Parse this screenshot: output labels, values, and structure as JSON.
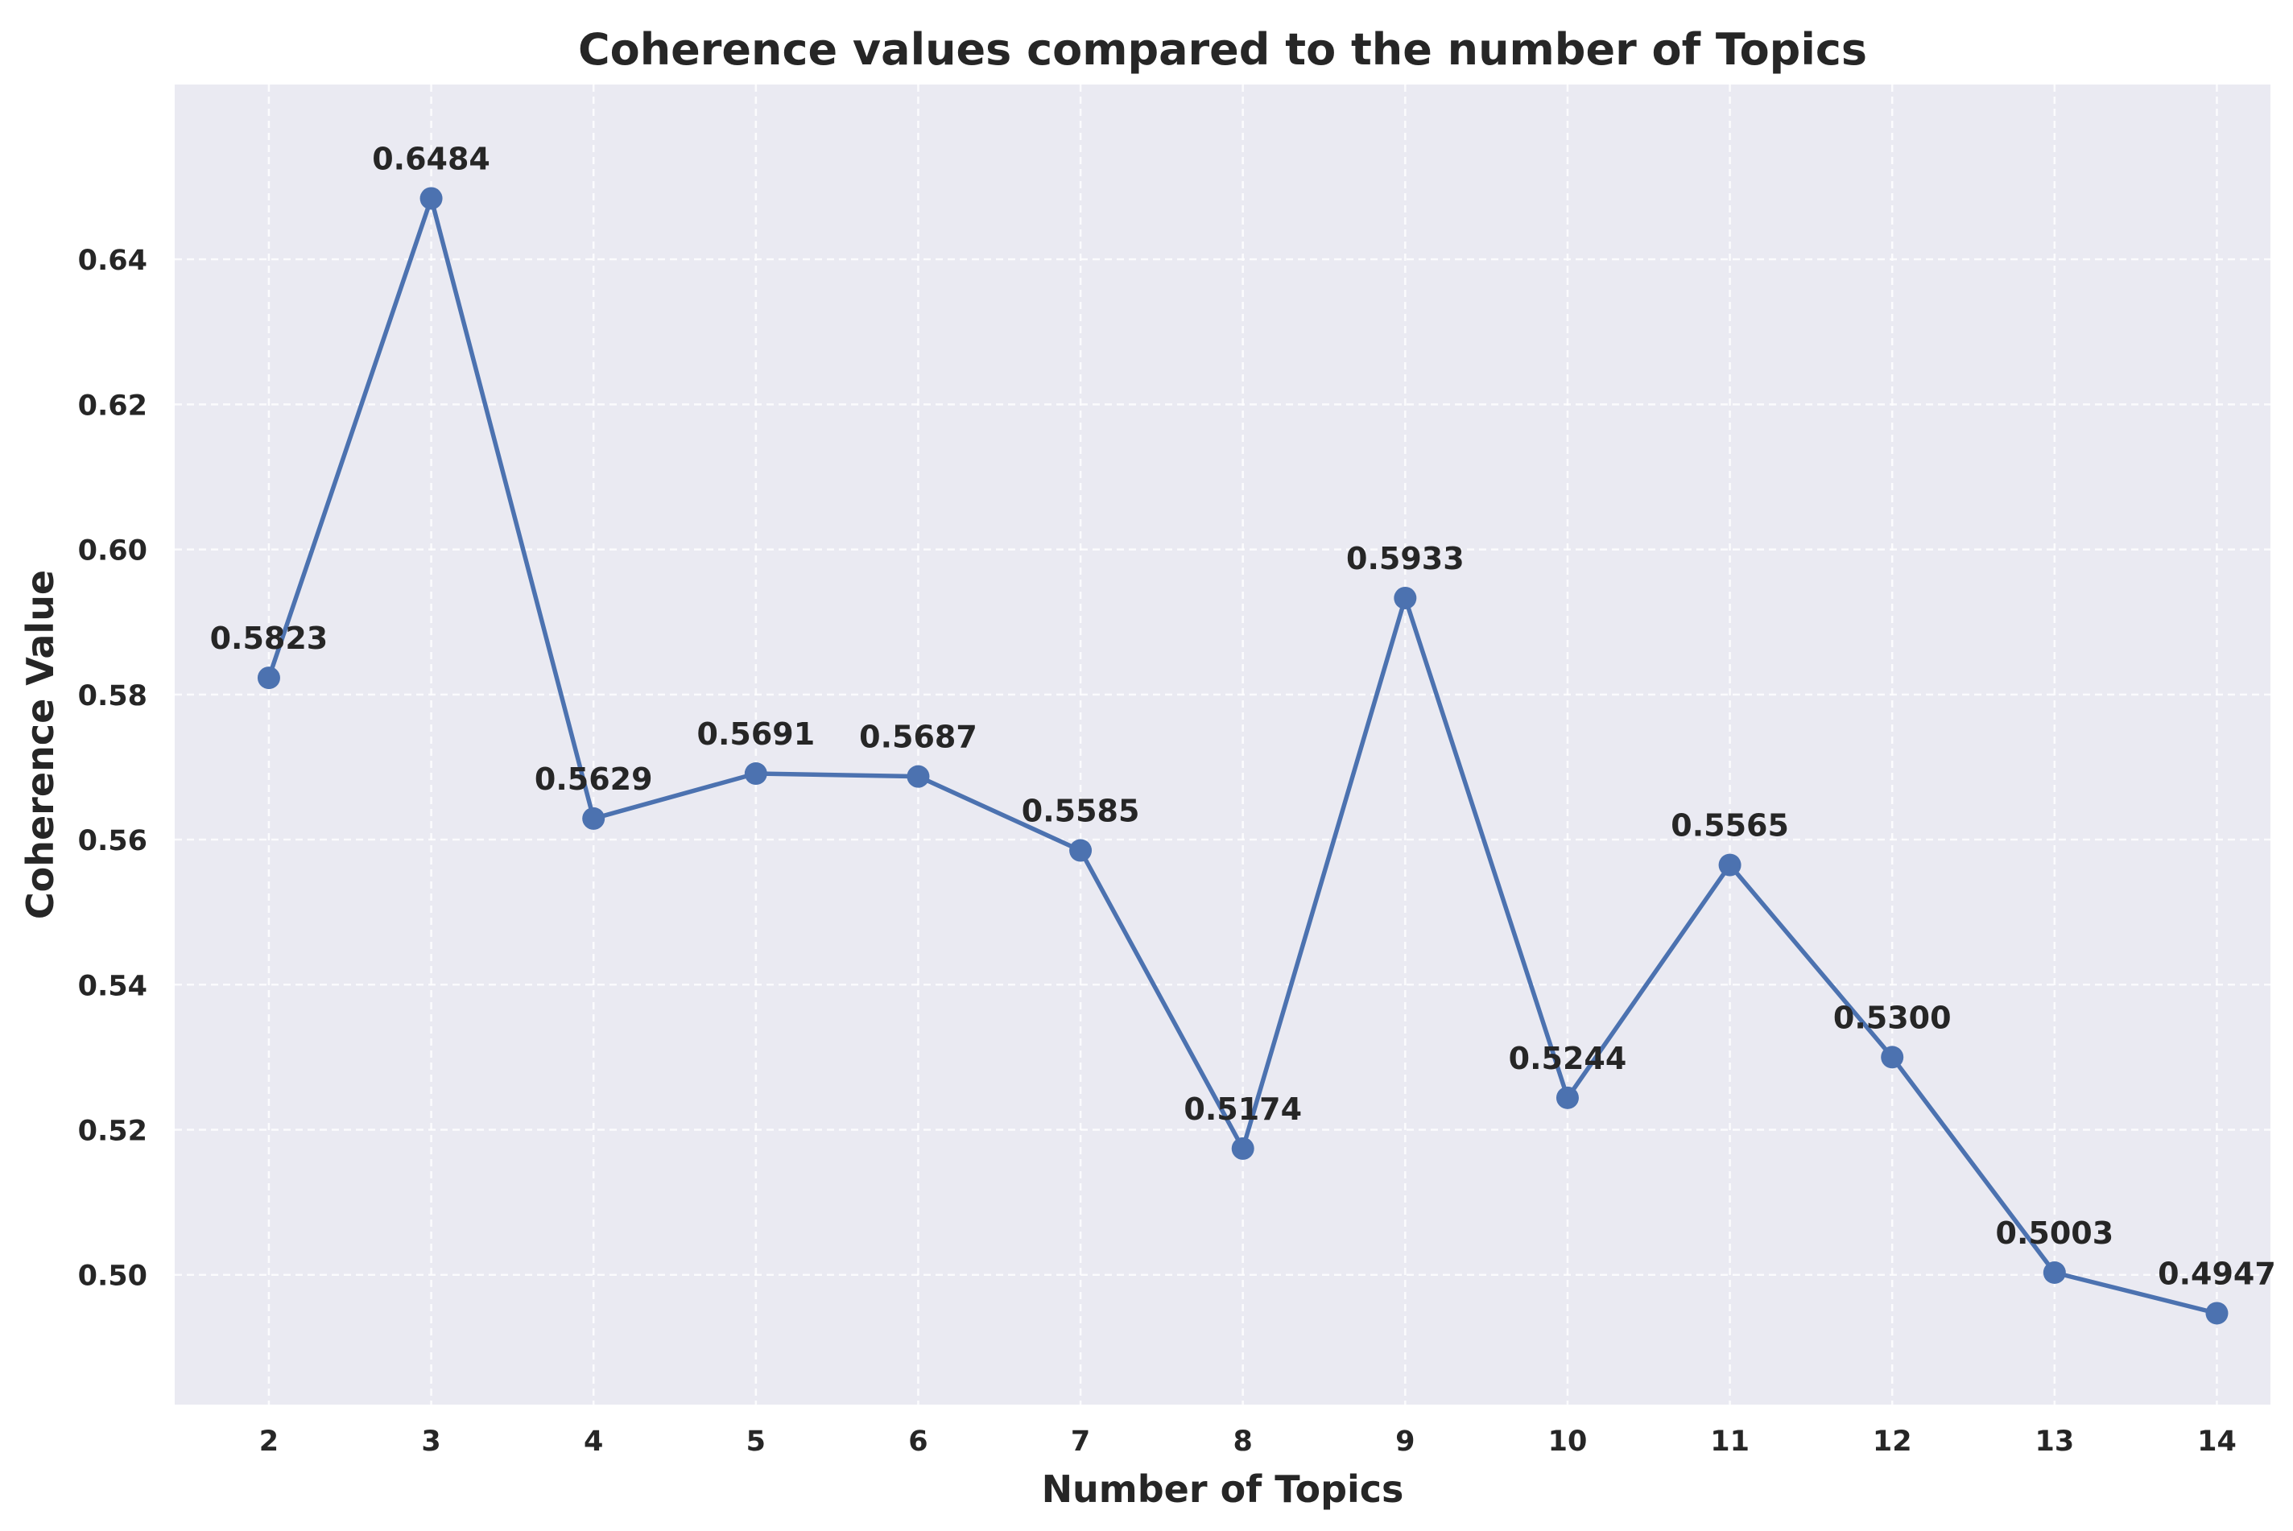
{
  "chart_data": {
    "type": "line",
    "title": "Coherence values compared to the number of Topics",
    "xlabel": "Number of Topics",
    "ylabel": "Coherence Value",
    "x": [
      2,
      3,
      4,
      5,
      6,
      7,
      8,
      9,
      10,
      11,
      12,
      13,
      14
    ],
    "series": [
      {
        "values": [
          0.5823,
          0.6484,
          0.5629,
          0.5691,
          0.5687,
          0.5585,
          0.5174,
          0.5933,
          0.5244,
          0.5565,
          0.53,
          0.5003,
          0.4947
        ]
      }
    ],
    "data_labels": [
      "0.5823",
      "0.6484",
      "0.5629",
      "0.5691",
      "0.5687",
      "0.5585",
      "0.5174",
      "0.5933",
      "0.5244",
      "0.5565",
      "0.5300",
      "0.5003",
      "0.4947"
    ],
    "x_ticks": [
      "2",
      "3",
      "4",
      "5",
      "6",
      "7",
      "8",
      "9",
      "10",
      "11",
      "12",
      "13",
      "14"
    ],
    "y_ticks": [
      "0.50",
      "0.52",
      "0.54",
      "0.56",
      "0.58",
      "0.60",
      "0.62",
      "0.64"
    ],
    "y_tick_values": [
      0.5,
      0.52,
      0.54,
      0.56,
      0.58,
      0.6,
      0.62,
      0.64
    ],
    "xlim": [
      1.42,
      14.33
    ],
    "ylim": [
      0.4821,
      0.6641
    ],
    "grid": true,
    "legend": "none",
    "colors": {
      "line": "#4c72b0",
      "plot_background": "#eaeaf2",
      "grid": "#ffffff",
      "text": "#262626"
    }
  }
}
